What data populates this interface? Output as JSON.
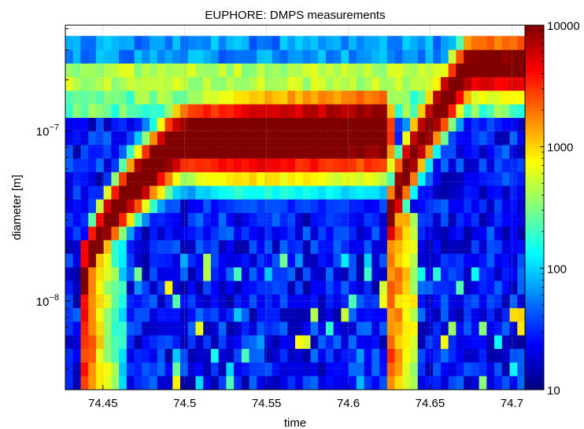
{
  "chart_data": {
    "type": "heatmap",
    "title": "EUPHORE: DMPS measurements",
    "xlabel": "time",
    "ylabel": "diameter [m]",
    "x_range": [
      74.427,
      74.708
    ],
    "x_ticks": [
      74.45,
      74.5,
      74.55,
      74.6,
      74.65,
      74.7
    ],
    "x_tick_labels": [
      "74.45",
      "74.5",
      "74.55",
      "74.6",
      "74.65",
      "74.7"
    ],
    "y_scale": "log",
    "y_range": [
      3e-09,
      4.2e-07
    ],
    "y_ticks": [
      1e-08,
      1e-07
    ],
    "y_tick_base": "10",
    "y_tick_exponents": [
      "−8",
      "−7"
    ],
    "colorbar": {
      "scale": "log",
      "colormap": "jet",
      "range": [
        10,
        10000
      ],
      "ticks": [
        10,
        100,
        1000,
        10000
      ],
      "tick_labels": [
        "10",
        "100",
        "1000",
        "10000"
      ]
    },
    "grid": true,
    "description_of_structure": "",
    "diameter_bins_log10": [
      -8.48,
      -8.4,
      -8.32,
      -8.24,
      -8.16,
      -8.08,
      -8.0,
      -7.92,
      -7.84,
      -7.76,
      -7.68,
      -7.6,
      -7.52,
      -7.44,
      -7.36,
      -7.28,
      -7.2,
      -7.12,
      -7.04,
      -6.96,
      -6.88,
      -6.8,
      -6.72,
      -6.64,
      -6.56,
      -6.48
    ],
    "events": {
      "first_injection_time": 74.438,
      "second_injection_time": 74.624,
      "growth_mode_start_log10": -7.95,
      "growth_mode_end_log10": -7.05,
      "second_growth_mode_start_log10": -7.65,
      "second_growth_mode_end_log10": -6.62,
      "peak_concentration": 10000,
      "background_concentration": 10
    }
  }
}
